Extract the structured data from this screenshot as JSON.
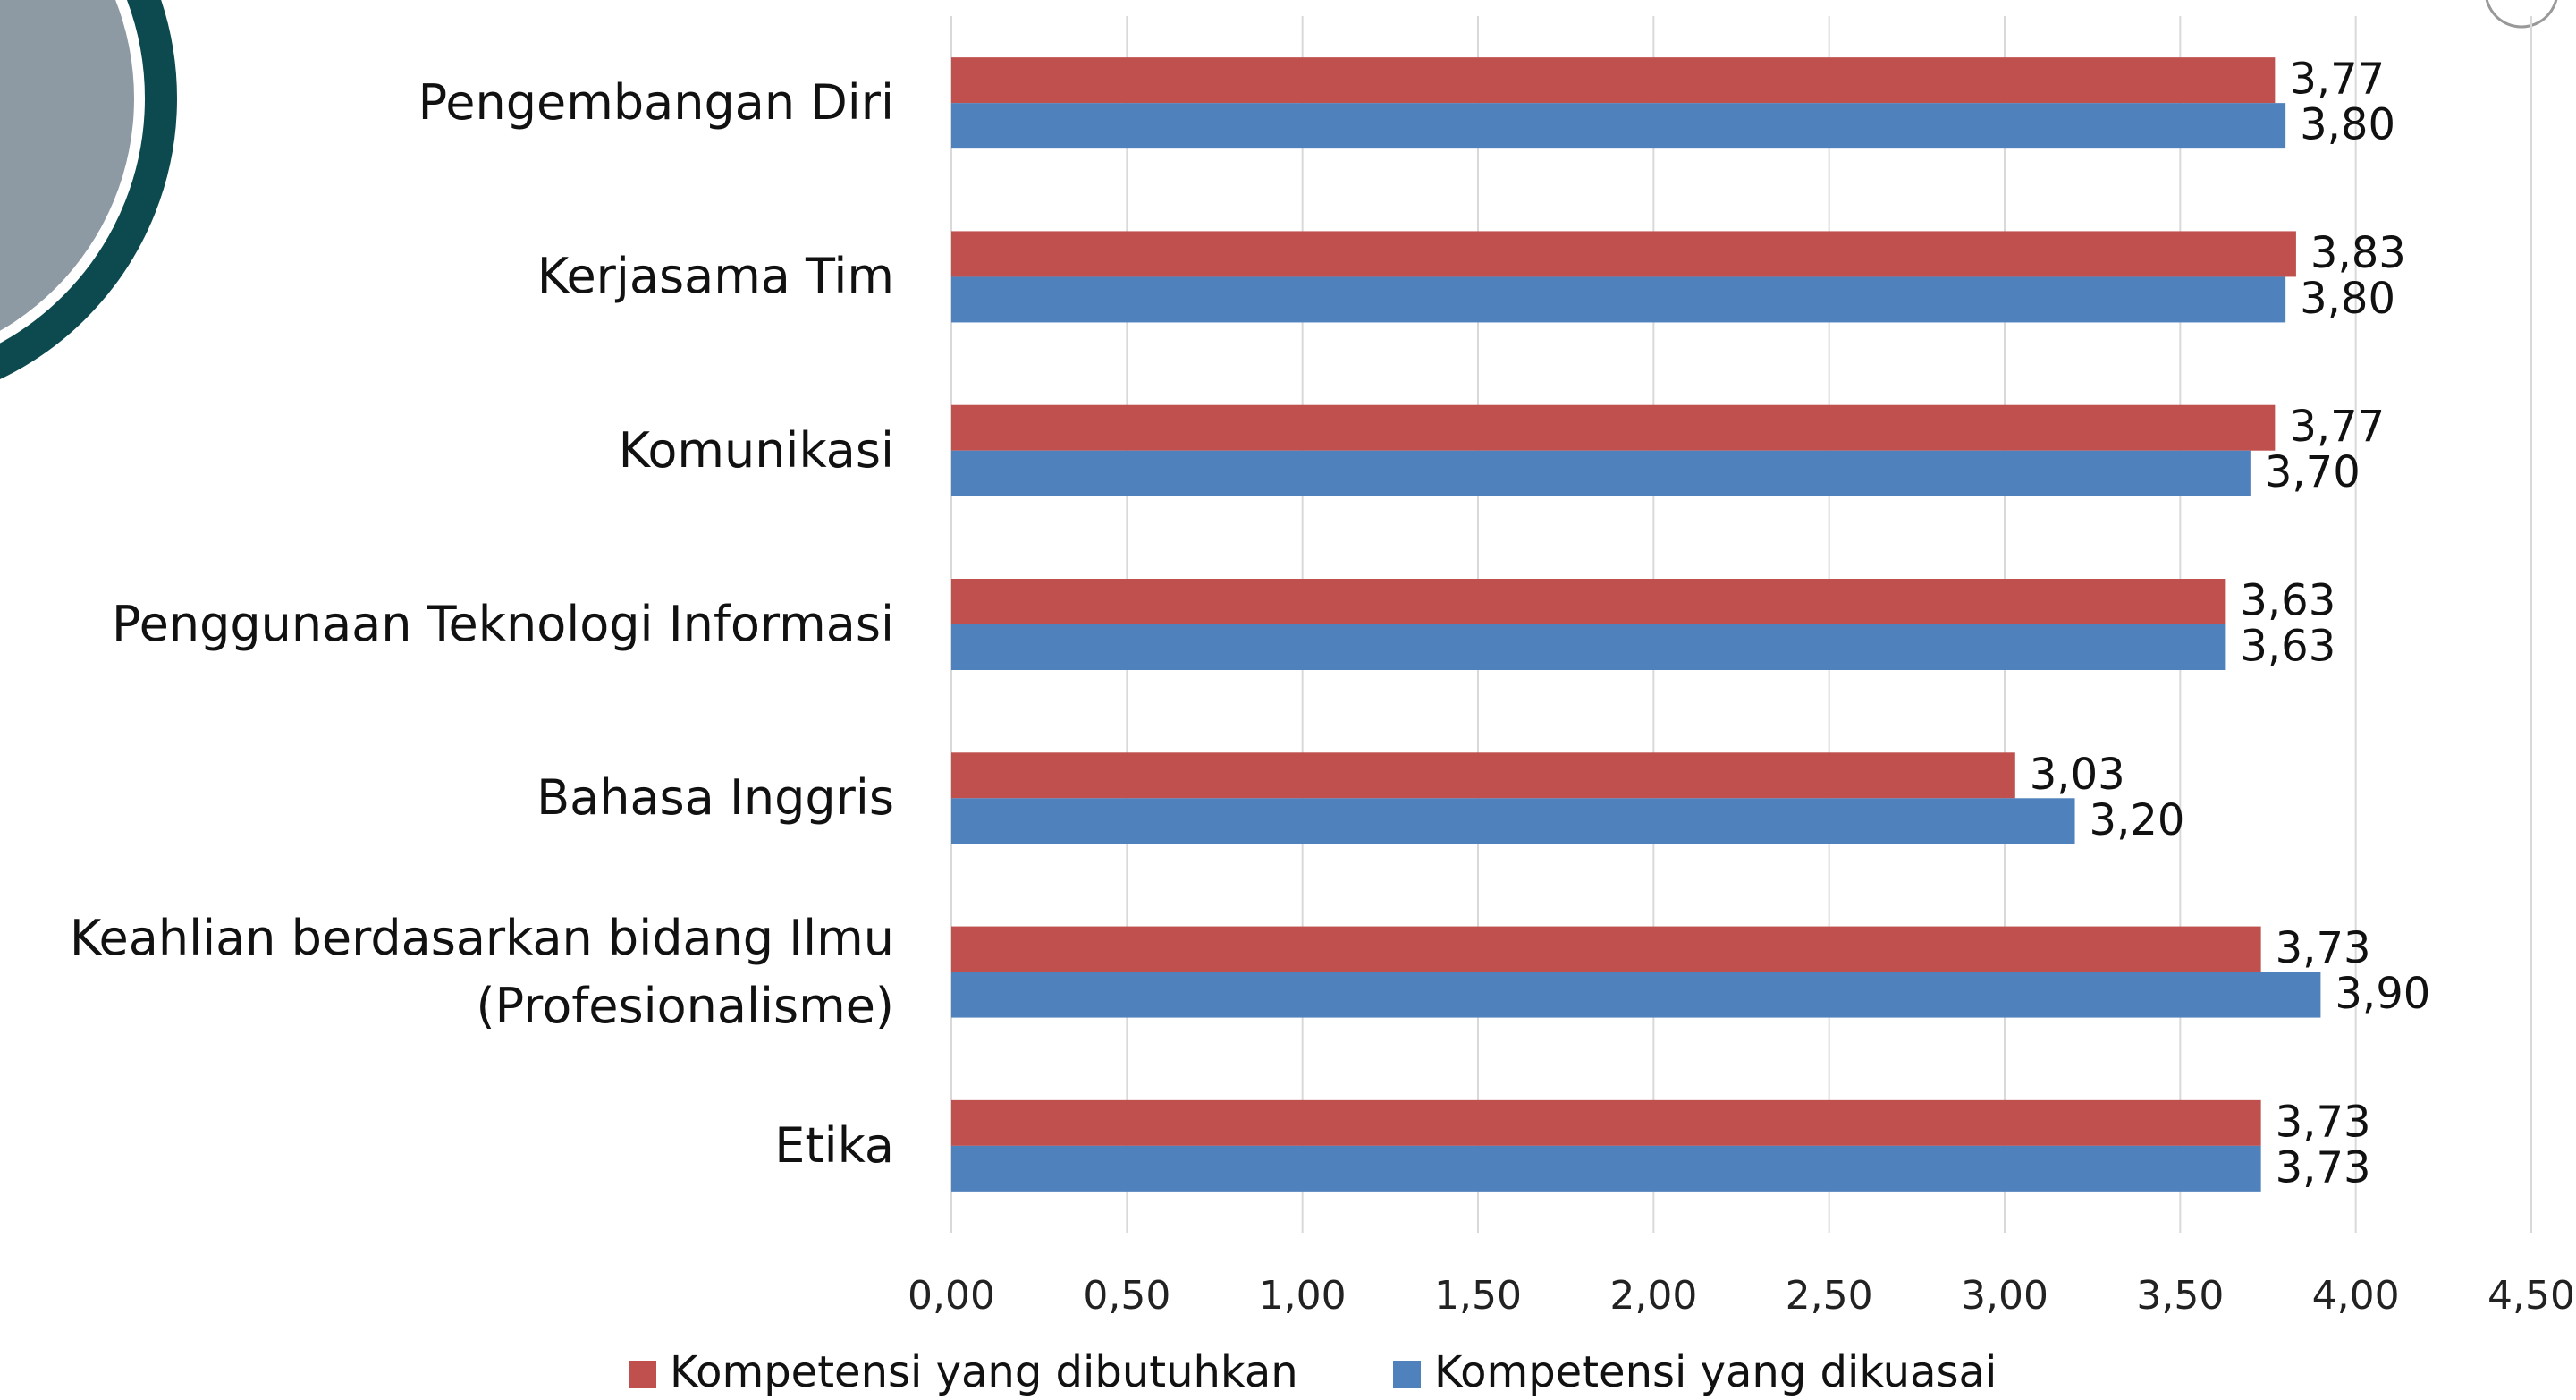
{
  "chart_data": {
    "type": "hbar",
    "categories": [
      "Pengembangan Diri",
      "Kerjasama Tim",
      "Komunikasi",
      "Penggunaan Teknologi Informasi",
      "Bahasa Inggris",
      "Keahlian berdasarkan bidang Ilmu (Profesionalisme)",
      "Etika"
    ],
    "series": [
      {
        "name": "Kompetensi yang dibutuhkan",
        "color": "#c0504d",
        "values": [
          3.77,
          3.83,
          3.77,
          3.63,
          3.03,
          3.73,
          3.73
        ],
        "value_labels": [
          "3,77",
          "3,83",
          "3,77",
          "3,63",
          "3,03",
          "3,73",
          "3,73"
        ]
      },
      {
        "name": "Kompetensi yang dikuasai",
        "color": "#4f81bd",
        "values": [
          3.8,
          3.8,
          3.7,
          3.63,
          3.2,
          3.9,
          3.73
        ],
        "value_labels": [
          "3,80",
          "3,80",
          "3,70",
          "3,63",
          "3,20",
          "3,90",
          "3,73"
        ]
      }
    ],
    "xlim": [
      0,
      4.5
    ],
    "xticks": [
      {
        "value": 0,
        "label": "0,00"
      },
      {
        "value": 0.5,
        "label": "0,50"
      },
      {
        "value": 1,
        "label": "1,00"
      },
      {
        "value": 1.5,
        "label": "1,50"
      },
      {
        "value": 2,
        "label": "2,00"
      },
      {
        "value": 2.5,
        "label": "2,50"
      },
      {
        "value": 3,
        "label": "3,00"
      },
      {
        "value": 3.5,
        "label": "3,50"
      },
      {
        "value": 4,
        "label": "4,00"
      },
      {
        "value": 4.5,
        "label": "4,50"
      }
    ],
    "grid": true,
    "legend": "bottom"
  }
}
